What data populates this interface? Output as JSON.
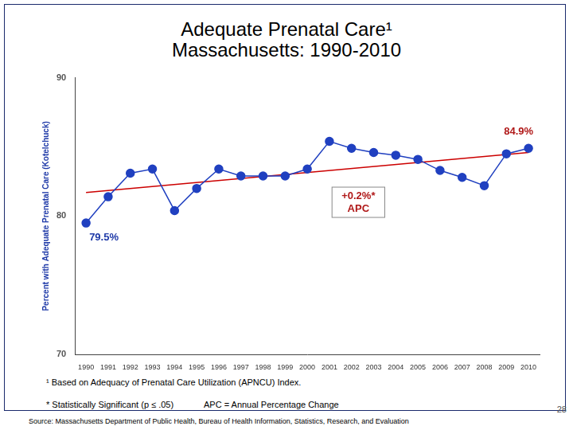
{
  "chart_data": {
    "type": "line",
    "title": "Adequate Prenatal Care¹",
    "subtitle": "Massachusetts: 1990-2010",
    "ylabel": "Percent with Adequate Prenatal Care (Kotelchuck)",
    "categories": [
      "1990",
      "1991",
      "1992",
      "1993",
      "1994",
      "1995",
      "1996",
      "1997",
      "1998",
      "1999",
      "2000",
      "2001",
      "2002",
      "2003",
      "2004",
      "2005",
      "2006",
      "2007",
      "2008",
      "2009",
      "2010"
    ],
    "series": [
      {
        "color": "#2040c0",
        "marker": "circle",
        "values": [
          79.5,
          81.4,
          83.1,
          83.4,
          80.4,
          82.0,
          83.4,
          82.9,
          82.9,
          82.9,
          83.4,
          85.4,
          84.9,
          84.6,
          84.4,
          84.1,
          83.3,
          82.8,
          82.2,
          84.5,
          84.9
        ]
      },
      {
        "color": "#cc0000",
        "marker": "none",
        "line_style": "solid",
        "values": [
          81.7,
          null,
          null,
          null,
          null,
          null,
          null,
          null,
          null,
          null,
          null,
          null,
          null,
          null,
          null,
          null,
          null,
          null,
          null,
          null,
          84.6
        ]
      }
    ],
    "ylim": [
      70,
      90
    ],
    "yticks": [
      70,
      80,
      90
    ],
    "grid": false,
    "annotations": [
      {
        "text": "84.9%",
        "x": "2010",
        "y": 84.9
      },
      {
        "text": "79.5%",
        "x": "1990",
        "y": 79.5
      },
      {
        "text": [
          "+0.2%*",
          "APC"
        ]
      }
    ],
    "notes": [
      "¹ Based on Adequacy of Prenatal Care Utilization (APNCU) Index.",
      "* Statistically Significant  (p ≤ .05)",
      "APC = Annual Percentage Change"
    ],
    "source": "Source:  Massachusetts Department of Public Health, Bureau of Health Information, Statistics, Research, and Evaluation",
    "page": "28"
  }
}
